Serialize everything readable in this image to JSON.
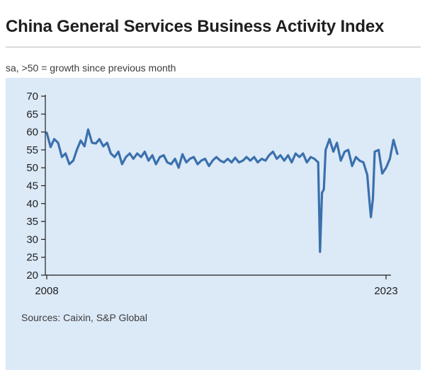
{
  "title": "China General Services Business Activity Index",
  "subtitle": "sa, >50 = growth since previous month",
  "source": "Sources: Caixin, S&P Global",
  "colors": {
    "line": "#3a70ad",
    "panel": "#dce9f7",
    "axis": "#1f1f1f"
  },
  "chart_data": {
    "type": "line",
    "title": "China General Services Business Activity Index",
    "subtitle": "sa, >50 = growth since previous month",
    "xlabel": "",
    "ylabel": "",
    "x_ticks": [
      "2008",
      "2023"
    ],
    "xlim": [
      2008.0,
      2023.58
    ],
    "y_ticks": [
      20,
      25,
      30,
      35,
      40,
      45,
      50,
      55,
      60,
      65,
      70
    ],
    "ylim": [
      20,
      70
    ],
    "grid": false,
    "legend": "none",
    "series": [
      {
        "name": "",
        "x": [
          2008.0,
          2008.17,
          2008.33,
          2008.5,
          2008.67,
          2008.83,
          2009.0,
          2009.17,
          2009.33,
          2009.5,
          2009.67,
          2009.83,
          2010.0,
          2010.17,
          2010.33,
          2010.5,
          2010.67,
          2010.83,
          2011.0,
          2011.17,
          2011.33,
          2011.5,
          2011.67,
          2011.83,
          2012.0,
          2012.17,
          2012.33,
          2012.5,
          2012.67,
          2012.83,
          2013.0,
          2013.17,
          2013.33,
          2013.5,
          2013.67,
          2013.83,
          2014.0,
          2014.17,
          2014.33,
          2014.5,
          2014.67,
          2014.83,
          2015.0,
          2015.17,
          2015.33,
          2015.5,
          2015.67,
          2015.83,
          2016.0,
          2016.17,
          2016.33,
          2016.5,
          2016.67,
          2016.83,
          2017.0,
          2017.17,
          2017.33,
          2017.5,
          2017.67,
          2017.83,
          2018.0,
          2018.17,
          2018.33,
          2018.5,
          2018.67,
          2018.83,
          2019.0,
          2019.17,
          2019.33,
          2019.5,
          2019.67,
          2019.83,
          2020.0,
          2020.08,
          2020.17,
          2020.25,
          2020.33,
          2020.5,
          2020.67,
          2020.83,
          2021.0,
          2021.17,
          2021.33,
          2021.5,
          2021.67,
          2021.83,
          2022.0,
          2022.17,
          2022.25,
          2022.33,
          2022.42,
          2022.5,
          2022.67,
          2022.83,
          2023.0,
          2023.17,
          2023.33,
          2023.5
        ],
        "values": [
          59.8,
          55.8,
          58.0,
          57.0,
          53.0,
          54.0,
          51.0,
          52.0,
          55.0,
          57.6,
          56.0,
          60.7,
          57.0,
          56.8,
          58.0,
          56.0,
          57.0,
          54.0,
          53.0,
          54.5,
          51.0,
          53.0,
          54.0,
          52.5,
          54.0,
          53.0,
          54.5,
          52.0,
          53.5,
          51.0,
          53.0,
          53.5,
          51.5,
          51.0,
          52.5,
          50.0,
          53.8,
          51.5,
          52.5,
          53.0,
          51.0,
          52.0,
          52.5,
          50.5,
          52.0,
          53.0,
          52.0,
          51.5,
          52.5,
          51.5,
          52.8,
          51.5,
          52.0,
          53.0,
          52.0,
          53.0,
          51.5,
          52.5,
          52.0,
          53.5,
          54.5,
          52.5,
          53.5,
          52.0,
          53.5,
          51.5,
          54.0,
          53.0,
          54.0,
          51.5,
          53.0,
          52.5,
          51.5,
          26.5,
          43.0,
          44.0,
          55.0,
          58.0,
          54.5,
          57.0,
          52.0,
          54.5,
          55.0,
          50.5,
          53.0,
          52.0,
          51.5,
          48.0,
          42.0,
          36.2,
          41.4,
          54.5,
          55.0,
          48.4,
          50.0,
          52.5,
          57.8,
          53.9
        ]
      }
    ]
  }
}
